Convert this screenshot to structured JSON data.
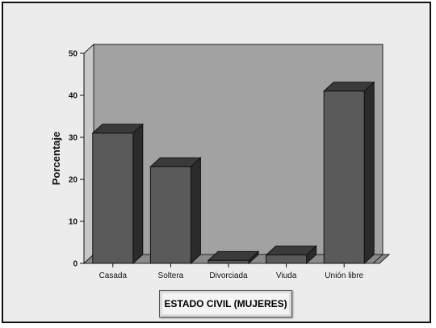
{
  "chart_data": {
    "type": "bar",
    "categories": [
      "Casada",
      "Soltera",
      "Divorciada",
      "Viuda",
      "Unión libre"
    ],
    "values": [
      31,
      23,
      0.7,
      2,
      41
    ],
    "ylabel": "Porcentaje",
    "ylim": [
      0,
      50
    ],
    "yticks": [
      0,
      10,
      20,
      30,
      40,
      50
    ],
    "grid": false,
    "style": "3d",
    "colors": {
      "bar_front": "#5a5a5a",
      "bar_top": "#3a3a3a",
      "bar_side": "#2b2b2b",
      "plot_back": "#a2a2a2",
      "floor": "#8a8a8a",
      "outer_background": "#ececec"
    }
  },
  "caption": {
    "text": "ESTADO CIVIL (MUJERES)"
  }
}
